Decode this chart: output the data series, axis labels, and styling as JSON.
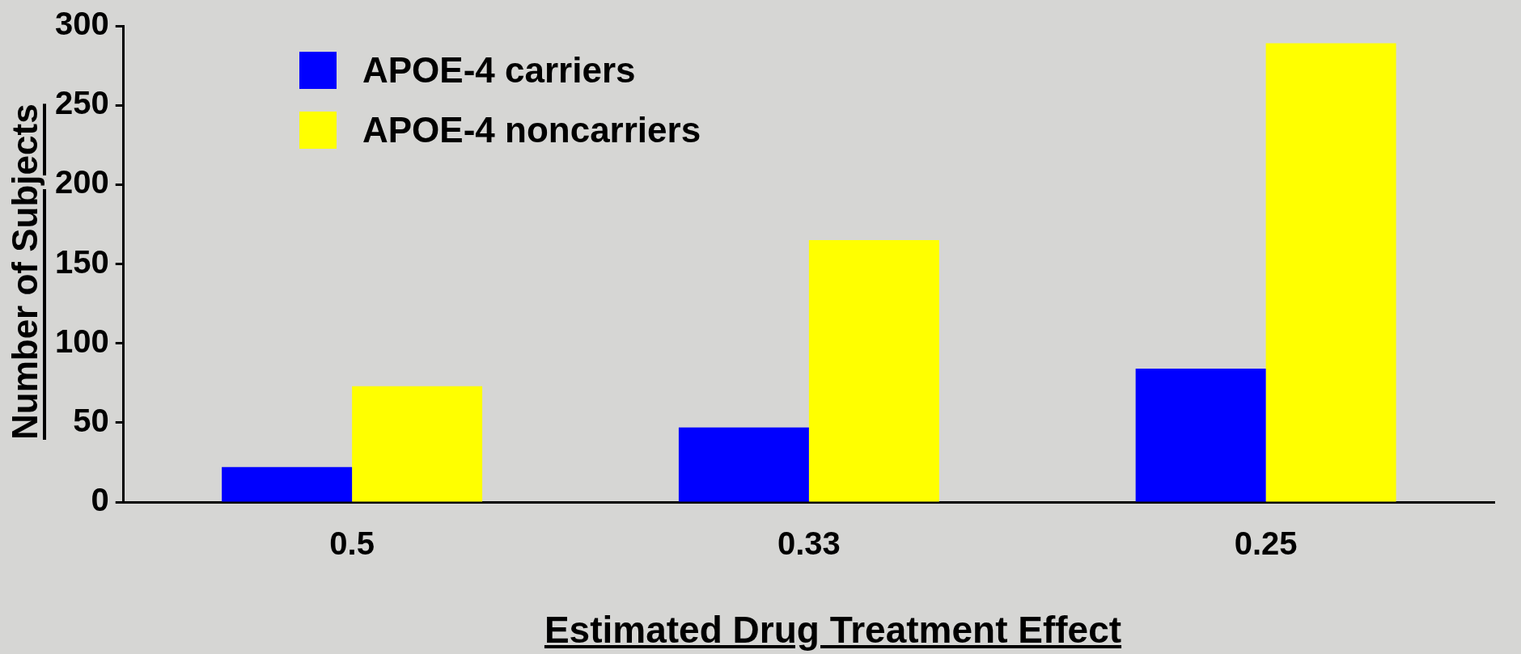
{
  "chart_data": {
    "type": "bar",
    "xlabel": "Estimated Drug Treatment Effect",
    "ylabel": "Number of Subjects",
    "categories": [
      "0.5",
      "0.33",
      "0.25"
    ],
    "series": [
      {
        "name": "APOE-4 carriers",
        "color": "#0000ff",
        "values": [
          22,
          47,
          84
        ]
      },
      {
        "name": "APOE-4 noncarriers",
        "color": "#ffff00",
        "values": [
          73,
          165,
          289
        ]
      }
    ],
    "ylim": [
      0,
      300
    ],
    "yticks": [
      0,
      50,
      100,
      150,
      200,
      250,
      300
    ],
    "grid": false,
    "legend": "top left"
  }
}
